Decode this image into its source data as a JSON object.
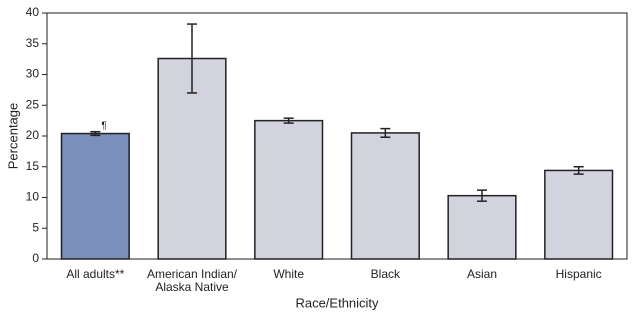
{
  "chart_data": {
    "type": "bar",
    "x_label": "Race/Ethnicity",
    "y_label": "Percentage",
    "categories": [
      "All adults**",
      "American Indian/\nAlaska Native",
      "White",
      "Black",
      "Asian",
      "Hispanic"
    ],
    "values": [
      20.4,
      32.6,
      22.5,
      20.5,
      10.3,
      14.4
    ],
    "errors": [
      0.3,
      5.6,
      0.4,
      0.7,
      0.9,
      0.6
    ],
    "colors": [
      "#7b8fbd",
      "#d2d3de",
      "#d2d3de",
      "#d2d3de",
      "#d2d3de",
      "#d2d3de"
    ],
    "annotation": "¶",
    "ylim": [
      0,
      40
    ],
    "yticks": [
      0,
      5,
      10,
      15,
      20,
      25,
      30,
      35,
      40
    ]
  }
}
